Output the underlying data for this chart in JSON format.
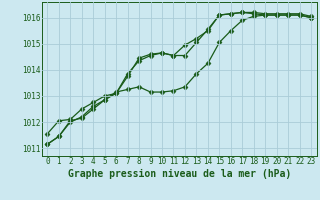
{
  "title": "Graphe pression niveau de la mer (hPa)",
  "background_color": "#cce8f0",
  "grid_color": "#aaccd8",
  "line_color": "#1a5c1a",
  "xlim": [
    -0.5,
    23.5
  ],
  "ylim": [
    1010.7,
    1016.6
  ],
  "yticks": [
    1011,
    1012,
    1013,
    1014,
    1015,
    1016
  ],
  "xticks": [
    0,
    1,
    2,
    3,
    4,
    5,
    6,
    7,
    8,
    9,
    10,
    11,
    12,
    13,
    14,
    15,
    16,
    17,
    18,
    19,
    20,
    21,
    22,
    23
  ],
  "series": [
    [
      1011.15,
      1011.45,
      1012.0,
      1012.2,
      1012.6,
      1012.85,
      1013.1,
      1013.85,
      1014.35,
      1014.55,
      1014.65,
      1014.55,
      1014.55,
      1015.05,
      1015.55,
      1016.1,
      1016.15,
      1016.2,
      1016.2,
      1016.15,
      1016.15,
      1016.15,
      1016.15,
      1016.05
    ],
    [
      1011.55,
      1012.05,
      1012.1,
      1012.5,
      1012.75,
      1013.0,
      1013.1,
      1013.75,
      1014.45,
      1014.6,
      1014.65,
      1014.55,
      1014.95,
      1015.2,
      1015.5,
      1016.1,
      1016.15,
      1016.2,
      1016.15,
      1016.1,
      1016.1,
      1016.1,
      1016.1,
      1016.0
    ],
    [
      1011.15,
      1011.45,
      1012.05,
      1012.15,
      1012.5,
      1012.85,
      1013.15,
      1013.25,
      1013.35,
      1013.15,
      1013.15,
      1013.2,
      1013.35,
      1013.85,
      1014.25,
      1015.05,
      1015.5,
      1015.9,
      1016.05,
      1016.1,
      1016.1,
      1016.1,
      1016.1,
      1016.0
    ]
  ],
  "marker": "D",
  "marker_size": 2.5,
  "line_width": 0.9,
  "tick_fontsize": 5.5,
  "xlabel_fontsize": 7
}
